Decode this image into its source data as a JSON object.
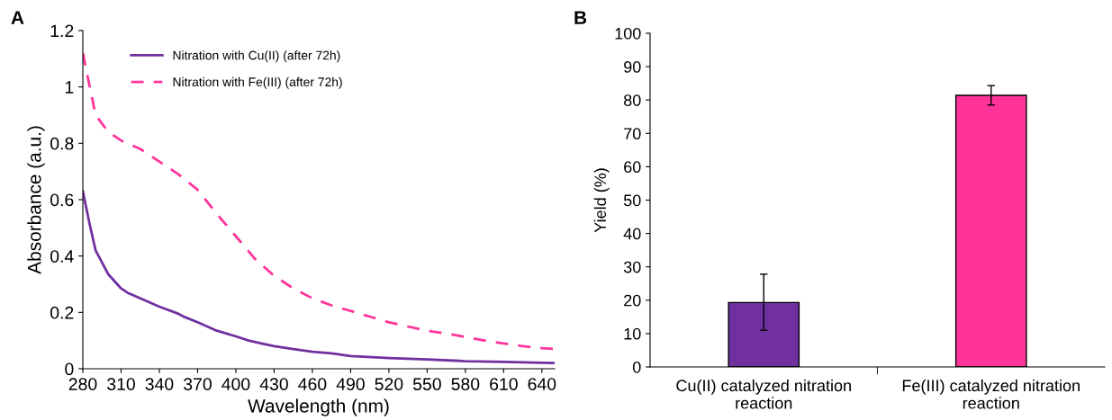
{
  "chart_data": [
    {
      "type": "line",
      "xlabel": "Wavelength (nm)",
      "ylabel": "Absorbance (a.u.)",
      "annotations": [
        "A"
      ],
      "xlim": [
        280,
        650
      ],
      "xticks": [
        280,
        310,
        340,
        370,
        400,
        430,
        460,
        490,
        520,
        550,
        580,
        610,
        640
      ],
      "ylim": [
        0,
        1.2
      ],
      "yticks": [
        0,
        0.2,
        0.4,
        0.6,
        0.8,
        1,
        1.2
      ],
      "grid": false,
      "legend": "top left",
      "series": [
        {
          "name": "Nitration with Cu(II) (after 72h)",
          "color": "#7030a0",
          "line_style": "solid",
          "x": [
            280,
            285,
            290,
            300,
            310,
            315,
            330,
            340,
            355,
            360,
            370,
            385,
            400,
            410,
            420,
            430,
            445,
            460,
            475,
            490,
            520,
            550,
            580,
            610,
            640,
            650
          ],
          "values": [
            0.63,
            0.52,
            0.42,
            0.335,
            0.285,
            0.27,
            0.24,
            0.22,
            0.195,
            0.183,
            0.165,
            0.135,
            0.115,
            0.1,
            0.09,
            0.08,
            0.07,
            0.06,
            0.055,
            0.045,
            0.038,
            0.033,
            0.027,
            0.024,
            0.021,
            0.02
          ]
        },
        {
          "name": "Nitration with Fe(III) (after 72h)",
          "color": "#ff3399",
          "line_style": "dashed",
          "x": [
            280,
            290,
            300,
            310,
            325,
            340,
            355,
            370,
            385,
            400,
            415,
            430,
            445,
            460,
            475,
            490,
            505,
            520,
            535,
            550,
            565,
            580,
            595,
            610,
            625,
            640,
            650
          ],
          "values": [
            1.12,
            0.9,
            0.84,
            0.81,
            0.78,
            0.735,
            0.69,
            0.635,
            0.55,
            0.47,
            0.39,
            0.33,
            0.285,
            0.25,
            0.225,
            0.205,
            0.185,
            0.165,
            0.15,
            0.135,
            0.125,
            0.113,
            0.1,
            0.09,
            0.08,
            0.073,
            0.07
          ]
        }
      ]
    },
    {
      "type": "bar",
      "ylabel": "Yield (%)",
      "annotations": [
        "B"
      ],
      "categories": [
        "Cu(II) catalyzed nitration\nreaction",
        "Fe(III) catalyzed nitration\nreaction"
      ],
      "values": [
        19.3,
        81.4
      ],
      "colors": [
        "#7030a0",
        "#ff3399"
      ],
      "errors": [
        [
          11,
          27.8
        ],
        [
          78.5,
          84.3
        ]
      ],
      "ylim": [
        0,
        100
      ],
      "yticks": [
        0,
        10,
        20,
        30,
        40,
        50,
        60,
        70,
        80,
        90,
        100
      ],
      "grid": false,
      "legend": false
    }
  ]
}
